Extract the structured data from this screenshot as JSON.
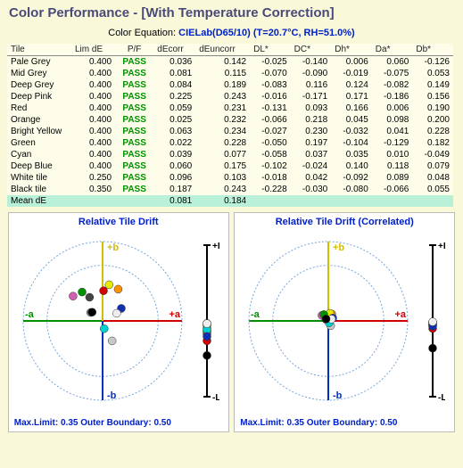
{
  "title": "Color Performance - [With Temperature Correction]",
  "equation_label": "Color Equation:",
  "equation_value": "CIELab(D65/10) (T=20.7°C, RH=51.0%)",
  "table": {
    "columns": [
      "Tile",
      "Lim dE",
      "P/F",
      "dEcorr",
      "dEuncorr",
      "DL*",
      "DC*",
      "Dh*",
      "Da*",
      "Db*"
    ],
    "rows": [
      [
        "Pale Grey",
        "0.400",
        "PASS",
        "0.036",
        "0.142",
        "-0.025",
        "-0.140",
        "0.006",
        "0.060",
        "-0.126"
      ],
      [
        "Mid Grey",
        "0.400",
        "PASS",
        "0.081",
        "0.115",
        "-0.070",
        "-0.090",
        "-0.019",
        "-0.075",
        "0.053"
      ],
      [
        "Deep Grey",
        "0.400",
        "PASS",
        "0.084",
        "0.189",
        "-0.083",
        "0.116",
        "0.124",
        "-0.082",
        "0.149"
      ],
      [
        "Deep Pink",
        "0.400",
        "PASS",
        "0.225",
        "0.243",
        "-0.016",
        "-0.171",
        "0.171",
        "-0.186",
        "0.156"
      ],
      [
        "Red",
        "0.400",
        "PASS",
        "0.059",
        "0.231",
        "-0.131",
        "0.093",
        "0.166",
        "0.006",
        "0.190"
      ],
      [
        "Orange",
        "0.400",
        "PASS",
        "0.025",
        "0.232",
        "-0.066",
        "0.218",
        "0.045",
        "0.098",
        "0.200"
      ],
      [
        "Bright Yellow",
        "0.400",
        "PASS",
        "0.063",
        "0.234",
        "-0.027",
        "0.230",
        "-0.032",
        "0.041",
        "0.228"
      ],
      [
        "Green",
        "0.400",
        "PASS",
        "0.022",
        "0.228",
        "-0.050",
        "0.197",
        "-0.104",
        "-0.129",
        "0.182"
      ],
      [
        "Cyan",
        "0.400",
        "PASS",
        "0.039",
        "0.077",
        "-0.058",
        "0.037",
        "0.035",
        "0.010",
        "-0.049"
      ],
      [
        "Deep Blue",
        "0.400",
        "PASS",
        "0.060",
        "0.175",
        "-0.102",
        "-0.024",
        "0.140",
        "0.118",
        "0.079"
      ],
      [
        "White tile",
        "0.250",
        "PASS",
        "0.096",
        "0.103",
        "-0.018",
        "0.042",
        "-0.092",
        "0.089",
        "0.048"
      ],
      [
        "Black tile",
        "0.350",
        "PASS",
        "0.187",
        "0.243",
        "-0.228",
        "-0.030",
        "-0.080",
        "-0.066",
        "0.055"
      ]
    ],
    "mean": [
      "Mean dE",
      "",
      "",
      "0.081",
      "0.184",
      "",
      "",
      "",
      "",
      ""
    ]
  },
  "left_chart": {
    "title": "Relative Tile Drift",
    "footer": "Max.Limit: 0.35 Outer Boundary: 0.50",
    "polar": {
      "rings": [
        0.35,
        0.5
      ],
      "ring_color": "#7aa6d8",
      "axis_pos_a": "#d00000",
      "axis_neg_a": "#009000",
      "axis_pos_b": "#d0c000",
      "axis_neg_b": "#0030c0",
      "labels": {
        "pa": "+a",
        "na": "-a",
        "pb": "+b",
        "nb": "-b"
      },
      "L_labels": {
        "top": "+L",
        "bot": "-L"
      },
      "L_axis_color": "#000",
      "points": [
        {
          "x": 0.06,
          "y": -0.126,
          "c": "#c8c8c8"
        },
        {
          "x": -0.075,
          "y": 0.053,
          "c": "#888888"
        },
        {
          "x": -0.082,
          "y": 0.149,
          "c": "#444444"
        },
        {
          "x": -0.186,
          "y": 0.156,
          "c": "#d060b0"
        },
        {
          "x": 0.006,
          "y": 0.19,
          "c": "#d00000"
        },
        {
          "x": 0.098,
          "y": 0.2,
          "c": "#ff9000"
        },
        {
          "x": 0.041,
          "y": 0.228,
          "c": "#e8e800"
        },
        {
          "x": -0.129,
          "y": 0.182,
          "c": "#009000"
        },
        {
          "x": 0.01,
          "y": -0.049,
          "c": "#00d0d0"
        },
        {
          "x": 0.118,
          "y": 0.079,
          "c": "#1030b0"
        },
        {
          "x": 0.089,
          "y": 0.048,
          "c": "#eeeeee"
        },
        {
          "x": -0.066,
          "y": 0.055,
          "c": "#000000"
        }
      ],
      "L_points": [
        {
          "v": -0.025,
          "c": "#c8c8c8"
        },
        {
          "v": -0.07,
          "c": "#888888"
        },
        {
          "v": -0.083,
          "c": "#444444"
        },
        {
          "v": -0.016,
          "c": "#d060b0"
        },
        {
          "v": -0.131,
          "c": "#d00000"
        },
        {
          "v": -0.066,
          "c": "#ff9000"
        },
        {
          "v": -0.027,
          "c": "#e8e800"
        },
        {
          "v": -0.05,
          "c": "#009000"
        },
        {
          "v": -0.058,
          "c": "#00d0d0"
        },
        {
          "v": -0.102,
          "c": "#1030b0"
        },
        {
          "v": -0.018,
          "c": "#eeeeee"
        },
        {
          "v": -0.228,
          "c": "#000000"
        }
      ],
      "scale": 0.5
    }
  },
  "right_chart": {
    "title": "Relative Tile Drift (Correlated)",
    "footer": "Max.Limit: 0.35 Outer Boundary: 0.50",
    "polar": {
      "rings": [
        0.35,
        0.5
      ],
      "ring_color": "#7aa6d8",
      "axis_pos_a": "#d00000",
      "axis_neg_a": "#009000",
      "axis_pos_b": "#d0c000",
      "axis_neg_b": "#0030c0",
      "labels": {
        "pa": "+a",
        "na": "-a",
        "pb": "+b",
        "nb": "-b"
      },
      "L_labels": {
        "top": "+L",
        "bot": "-L"
      },
      "L_axis_color": "#000",
      "points": [
        {
          "x": 0.015,
          "y": -0.03,
          "c": "#c8c8c8"
        },
        {
          "x": -0.015,
          "y": 0.01,
          "c": "#888888"
        },
        {
          "x": -0.018,
          "y": 0.03,
          "c": "#444444"
        },
        {
          "x": -0.04,
          "y": 0.035,
          "c": "#d060b0"
        },
        {
          "x": 0.001,
          "y": 0.04,
          "c": "#d00000"
        },
        {
          "x": 0.022,
          "y": 0.043,
          "c": "#ff9000"
        },
        {
          "x": 0.01,
          "y": 0.048,
          "c": "#e8e800"
        },
        {
          "x": -0.028,
          "y": 0.04,
          "c": "#009000"
        },
        {
          "x": 0.005,
          "y": -0.012,
          "c": "#00d0d0"
        },
        {
          "x": 0.028,
          "y": 0.018,
          "c": "#1030b0"
        },
        {
          "x": 0.02,
          "y": 0.012,
          "c": "#eeeeee"
        },
        {
          "x": -0.014,
          "y": 0.012,
          "c": "#000000"
        }
      ],
      "L_points": [
        {
          "v": -0.01,
          "c": "#c8c8c8"
        },
        {
          "v": -0.025,
          "c": "#888888"
        },
        {
          "v": -0.03,
          "c": "#444444"
        },
        {
          "v": -0.006,
          "c": "#d060b0"
        },
        {
          "v": -0.05,
          "c": "#d00000"
        },
        {
          "v": -0.022,
          "c": "#ff9000"
        },
        {
          "v": -0.009,
          "c": "#e8e800"
        },
        {
          "v": -0.018,
          "c": "#009000"
        },
        {
          "v": -0.02,
          "c": "#00d0d0"
        },
        {
          "v": -0.035,
          "c": "#1030b0"
        },
        {
          "v": -0.006,
          "c": "#eeeeee"
        },
        {
          "v": -0.18,
          "c": "#000000"
        }
      ],
      "scale": 0.5
    }
  }
}
